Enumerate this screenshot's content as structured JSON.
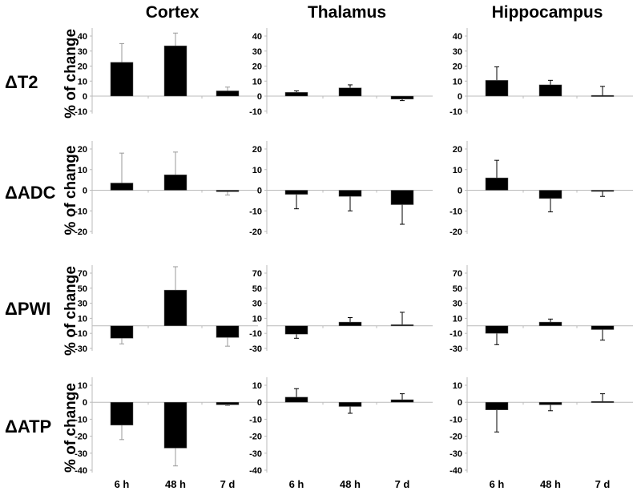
{
  "chart_data": {
    "type": "bar",
    "columns": [
      "Cortex",
      "Thalamus",
      "Hippocampus"
    ],
    "categories": [
      "6 h",
      "48 h",
      "7 d"
    ],
    "ylabel": "% of change",
    "grid": false,
    "bar_color": "#000000",
    "rows": [
      {
        "label": "ΔT2",
        "ylim": [
          -10,
          40
        ],
        "ticks": [
          -10,
          0,
          10,
          20,
          30,
          40
        ],
        "panels": [
          {
            "values": [
              22.5,
              33.5,
              3.5
            ],
            "errors": [
              12.5,
              8.5,
              2.5
            ]
          },
          {
            "values": [
              2.5,
              5.5,
              -2
            ],
            "errors": [
              1,
              2,
              1
            ]
          },
          {
            "values": [
              10.5,
              7.5,
              0.5
            ],
            "errors": [
              9,
              3,
              6
            ]
          }
        ]
      },
      {
        "label": "ΔADC",
        "ylim": [
          -20,
          20
        ],
        "ticks": [
          -20,
          -10,
          0,
          10,
          20
        ],
        "panels": [
          {
            "values": [
              3.5,
              7.5,
              -0.7
            ],
            "errors": [
              14.5,
              11,
              1.6
            ]
          },
          {
            "values": [
              -2,
              -3,
              -7
            ],
            "errors": [
              7,
              7,
              9.5
            ]
          },
          {
            "values": [
              6,
              -4,
              -0.5
            ],
            "errors": [
              8.5,
              6.5,
              2.5
            ]
          }
        ]
      },
      {
        "label": "ΔPWI",
        "ylim": [
          -30,
          70
        ],
        "ticks": [
          -30,
          -10,
          10,
          30,
          50,
          70
        ],
        "panels": [
          {
            "values": [
              -16.5,
              47.5,
              -15.5
            ],
            "errors": [
              7.5,
              31,
              11.5
            ]
          },
          {
            "values": [
              -11,
              5,
              1.5
            ],
            "errors": [
              5.5,
              6,
              16.5
            ]
          },
          {
            "values": [
              -10,
              5,
              -5
            ],
            "errors": [
              15,
              4,
              14
            ]
          }
        ]
      },
      {
        "label": "ΔATP",
        "ylim": [
          -40,
          10
        ],
        "ticks": [
          -40,
          -30,
          -20,
          -10,
          0,
          10
        ],
        "panels": [
          {
            "values": [
              -13.5,
              -27,
              -1.5
            ],
            "errors": [
              8.5,
              10.5,
              0.5
            ]
          },
          {
            "values": [
              3,
              -2.5,
              1.5
            ],
            "errors": [
              5,
              4,
              3.5
            ]
          },
          {
            "values": [
              -4.5,
              -1.5,
              0.5
            ],
            "errors": [
              13,
              3.5,
              4.5
            ]
          }
        ]
      }
    ]
  }
}
